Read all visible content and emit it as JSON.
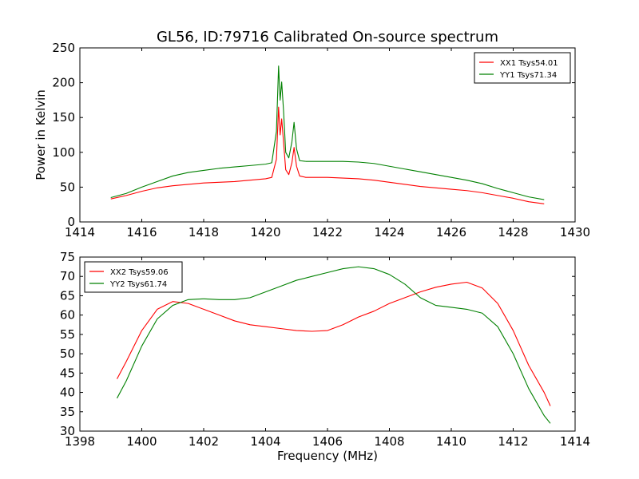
{
  "chart_data": [
    {
      "type": "line",
      "title": "GL56, ID:79716 Calibrated On-source spectrum",
      "xlabel": "",
      "ylabel": "Power in Kelvin",
      "xlim": [
        1414,
        1430
      ],
      "ylim": [
        0,
        250
      ],
      "xticks": [
        1414,
        1416,
        1418,
        1420,
        1422,
        1424,
        1426,
        1428,
        1430
      ],
      "yticks": [
        0,
        50,
        100,
        150,
        200,
        250
      ],
      "grid": false,
      "legend": "top-right",
      "series": [
        {
          "name": "XX1 Tsys54.01",
          "color": "#ff0000",
          "x": [
            1415.0,
            1415.5,
            1416.0,
            1416.5,
            1417.0,
            1417.5,
            1418.0,
            1418.5,
            1419.0,
            1419.5,
            1420.0,
            1420.2,
            1420.35,
            1420.42,
            1420.47,
            1420.52,
            1420.58,
            1420.65,
            1420.75,
            1420.85,
            1420.92,
            1421.0,
            1421.1,
            1421.3,
            1421.6,
            1422.0,
            1422.5,
            1423.0,
            1423.5,
            1424.0,
            1424.5,
            1425.0,
            1425.5,
            1426.0,
            1426.5,
            1427.0,
            1427.5,
            1428.0,
            1428.5,
            1429.0
          ],
          "y": [
            33,
            38,
            44,
            49,
            52,
            54,
            56,
            57,
            58,
            60,
            62,
            64,
            90,
            165,
            125,
            148,
            115,
            75,
            68,
            85,
            107,
            80,
            66,
            64,
            64,
            64,
            63,
            62,
            60,
            57,
            54,
            51,
            49,
            47,
            45,
            42,
            38,
            34,
            29,
            26
          ]
        },
        {
          "name": "YY1 Tsys71.34",
          "color": "#008000",
          "x": [
            1415.0,
            1415.5,
            1416.0,
            1416.5,
            1417.0,
            1417.5,
            1418.0,
            1418.5,
            1419.0,
            1419.5,
            1420.0,
            1420.2,
            1420.35,
            1420.42,
            1420.47,
            1420.52,
            1420.58,
            1420.65,
            1420.75,
            1420.85,
            1420.92,
            1421.0,
            1421.1,
            1421.3,
            1421.6,
            1422.0,
            1422.5,
            1423.0,
            1423.5,
            1424.0,
            1424.5,
            1425.0,
            1425.5,
            1426.0,
            1426.5,
            1427.0,
            1427.5,
            1428.0,
            1428.5,
            1429.0
          ],
          "y": [
            35,
            41,
            50,
            58,
            66,
            71,
            74,
            77,
            79,
            81,
            83,
            85,
            130,
            224,
            175,
            201,
            160,
            100,
            92,
            115,
            143,
            105,
            88,
            87,
            87,
            87,
            87,
            86,
            84,
            80,
            76,
            72,
            68,
            64,
            60,
            55,
            48,
            42,
            36,
            32
          ]
        }
      ]
    },
    {
      "type": "line",
      "title": "",
      "xlabel": "Frequency (MHz)",
      "ylabel": "",
      "xlim": [
        1398,
        1414
      ],
      "ylim": [
        30,
        75
      ],
      "xticks": [
        1398,
        1400,
        1402,
        1404,
        1406,
        1408,
        1410,
        1412,
        1414
      ],
      "yticks": [
        30,
        35,
        40,
        45,
        50,
        55,
        60,
        65,
        70,
        75
      ],
      "grid": false,
      "legend": "top-left",
      "series": [
        {
          "name": "XX2 Tsys59.06",
          "color": "#ff0000",
          "x": [
            1399.2,
            1399.5,
            1400.0,
            1400.5,
            1401.0,
            1401.5,
            1402.0,
            1402.5,
            1403.0,
            1403.5,
            1404.0,
            1404.5,
            1405.0,
            1405.5,
            1406.0,
            1406.5,
            1407.0,
            1407.5,
            1408.0,
            1408.5,
            1409.0,
            1409.5,
            1410.0,
            1410.5,
            1411.0,
            1411.5,
            1412.0,
            1412.5,
            1413.0,
            1413.2
          ],
          "y": [
            43.5,
            48,
            56,
            61.5,
            63.5,
            63,
            61.5,
            60,
            58.5,
            57.5,
            57,
            56.5,
            56,
            55.8,
            56,
            57.5,
            59.5,
            61,
            63,
            64.5,
            66,
            67.2,
            68,
            68.5,
            67,
            63,
            56,
            47,
            40,
            36.5
          ]
        },
        {
          "name": "YY2 Tsys61.74",
          "color": "#008000",
          "x": [
            1399.2,
            1399.5,
            1400.0,
            1400.5,
            1401.0,
            1401.5,
            1402.0,
            1402.5,
            1403.0,
            1403.5,
            1404.0,
            1404.5,
            1405.0,
            1405.5,
            1406.0,
            1406.5,
            1407.0,
            1407.5,
            1408.0,
            1408.5,
            1409.0,
            1409.5,
            1410.0,
            1410.5,
            1411.0,
            1411.5,
            1412.0,
            1412.5,
            1413.0,
            1413.2
          ],
          "y": [
            38.5,
            43,
            52,
            59,
            62.5,
            64,
            64.2,
            64,
            64,
            64.5,
            66,
            67.5,
            69,
            70,
            71,
            72,
            72.5,
            72,
            70.5,
            68,
            64.5,
            62.5,
            62,
            61.5,
            60.5,
            57,
            50,
            41,
            34,
            32
          ]
        }
      ]
    }
  ]
}
